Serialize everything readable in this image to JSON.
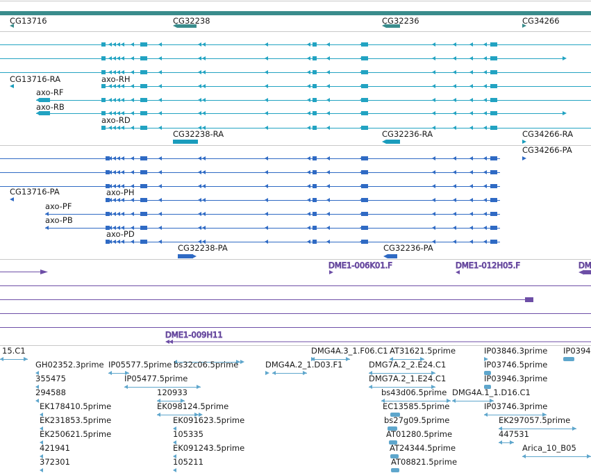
{
  "colors": {
    "background": "#ffffff",
    "separator": "#c8c8c8",
    "gene": "#3a8c8c",
    "transcript_cds": "#1a9cbc",
    "transcript_line": "#22a3c2",
    "protein": "#2f6ac4",
    "clone": "#6d4ea6",
    "est": "#5ea6cc"
  },
  "icons": {
    "forward_strand": "right-arrowhead",
    "reverse_strand": "left-arrowhead",
    "intron": "chevron-marker"
  },
  "gene_track": {
    "labels": [
      "CG13716",
      "CG32238",
      "CG32236",
      "CG34266"
    ]
  },
  "transcript_track": {
    "labels": [
      "CG13716-RA",
      "axo-RH",
      "axo-RF",
      "axo-RB",
      "axo-RD",
      "CG32238-RA",
      "CG32236-RA",
      "CG34266-RA"
    ]
  },
  "protein_track": {
    "labels": [
      "CG34266-PA",
      "CG13716-PA",
      "axo-PH",
      "axo-PF",
      "axo-PB",
      "axo-PD",
      "CG32238-PA",
      "CG32236-PA"
    ]
  },
  "clone_track": {
    "labels": [
      "DME1-006K01.F",
      "DME1-012H05.F",
      "DM",
      "DME1-009H11"
    ]
  },
  "est_track": {
    "labels": [
      "15.C1",
      "DMG4A.3_1.F06.C1",
      "AT31621.5prime",
      "IP03846.3prime",
      "IP0394",
      "GH02352.3prime",
      "IP05577.5prime",
      "bs32c06.5prime",
      "DMG4A.2_1.D03.F1",
      "DMG7A.2_2.E24.C1",
      "IP03746.5prime",
      "355475",
      "IP05477.5prime",
      "DMG7A.2_1.E24.C1",
      "IP03946.3prime",
      "294588",
      "120933",
      "bs43d06.5prime",
      "DMG4A.1_1.D16.C1",
      "EK178410.5prime",
      "EK098124.5prime",
      "EC13585.5prime",
      "IP03746.3prime",
      "EK231853.5prime",
      "EK091623.5prime",
      "bs27g09.5prime",
      "EK297057.5prime",
      "EK250621.5prime",
      "105335",
      "AT01280.5prime",
      "447531",
      "421941",
      "EK091243.5prime",
      "AT24344.5prime",
      "Arica_10_B05",
      "372301",
      "105211",
      "AT08821.5prime"
    ]
  }
}
